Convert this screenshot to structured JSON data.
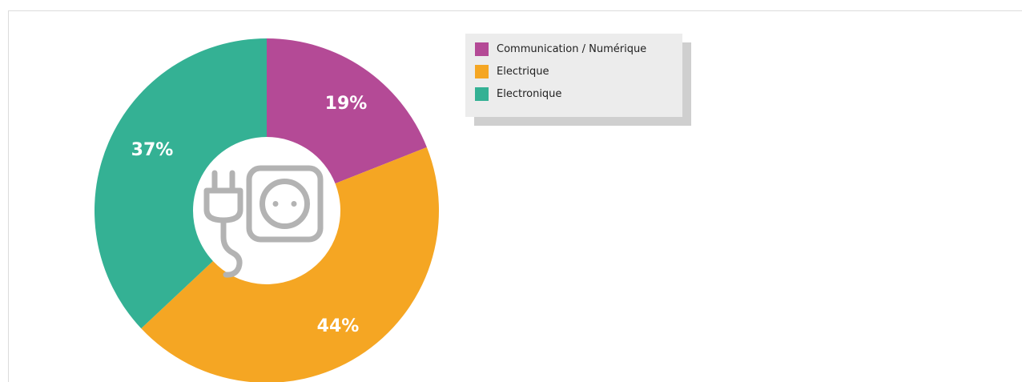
{
  "chart_data": {
    "type": "pie",
    "title": "",
    "categories": [
      "Communication / Numérique",
      "Electrique",
      "Electronique"
    ],
    "values": [
      19,
      44,
      37
    ],
    "labels": [
      "19%",
      "44%",
      "37%"
    ],
    "colors": [
      "#b44a96",
      "#f5a623",
      "#34b194"
    ],
    "donut": true,
    "center_icon": "plug-socket-icon",
    "legend": {
      "placement": "top-right",
      "entries": [
        "Communication / Numérique",
        "Electrique",
        "Electronique"
      ]
    }
  }
}
